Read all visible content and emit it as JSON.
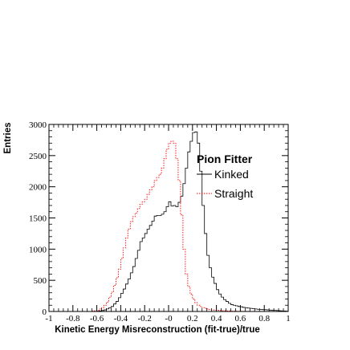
{
  "chart_data": {
    "type": "histogram",
    "title": "",
    "xlabel": "Kinetic Energy Misreconstruction (fit-true)/true",
    "ylabel": "Entries",
    "xlim": [
      -1,
      1
    ],
    "ylim": [
      0,
      3000
    ],
    "x_ticks": [
      "-1",
      "-0.8",
      "-0.6",
      "-0.4",
      "-0.2",
      "-0",
      "0.2",
      "0.4",
      "0.6",
      "0.8",
      "1"
    ],
    "y_ticks": [
      "0",
      "500",
      "1000",
      "1500",
      "2000",
      "2500",
      "3000"
    ],
    "grid": false,
    "legend": {
      "title": "Pion Fitter",
      "position": "top-right"
    },
    "bin_width": 0.02,
    "bin_start": -1,
    "series": [
      {
        "name": "Kinked",
        "color": "#000000",
        "style": "solid",
        "values": [
          0,
          0,
          0,
          0,
          0,
          0,
          0,
          0,
          0,
          0,
          0,
          0,
          0,
          0,
          0,
          0,
          0,
          0,
          0,
          0,
          5,
          10,
          15,
          25,
          40,
          60,
          80,
          120,
          160,
          220,
          290,
          360,
          440,
          520,
          620,
          720,
          850,
          980,
          1120,
          1180,
          1250,
          1320,
          1380,
          1450,
          1530,
          1540,
          1540,
          1560,
          1600,
          1680,
          1760,
          1690,
          1700,
          1680,
          1750,
          1850,
          2050,
          2300,
          2560,
          2730,
          2870,
          2880,
          2700,
          2250,
          1700,
          1250,
          900,
          700,
          550,
          450,
          350,
          280,
          230,
          190,
          160,
          130,
          110,
          100,
          90,
          80,
          75,
          65,
          60,
          55,
          50,
          45,
          40,
          35,
          32,
          30,
          28,
          25,
          22,
          20,
          18,
          15,
          12,
          10,
          8,
          5
        ]
      },
      {
        "name": "Straight",
        "color": "#ff0000",
        "style": "dotted",
        "values": [
          0,
          0,
          0,
          0,
          0,
          0,
          0,
          0,
          0,
          0,
          0,
          0,
          0,
          0,
          0,
          0,
          0,
          0,
          5,
          10,
          20,
          40,
          60,
          100,
          150,
          230,
          310,
          420,
          540,
          680,
          850,
          1020,
          1180,
          1320,
          1440,
          1520,
          1580,
          1650,
          1720,
          1760,
          1800,
          1880,
          1950,
          2000,
          2100,
          2150,
          2200,
          2300,
          2450,
          2600,
          2700,
          2730,
          2700,
          2450,
          2100,
          1550,
          1000,
          600,
          400,
          280,
          200,
          140,
          100,
          80,
          60,
          50,
          40,
          30,
          25,
          20,
          18,
          15,
          12,
          10,
          8,
          8,
          6,
          5,
          4,
          3,
          3,
          2,
          2,
          2,
          1,
          1,
          1,
          0,
          0,
          0,
          0,
          0,
          0,
          0,
          0,
          0,
          0,
          0,
          0,
          0
        ]
      }
    ]
  }
}
